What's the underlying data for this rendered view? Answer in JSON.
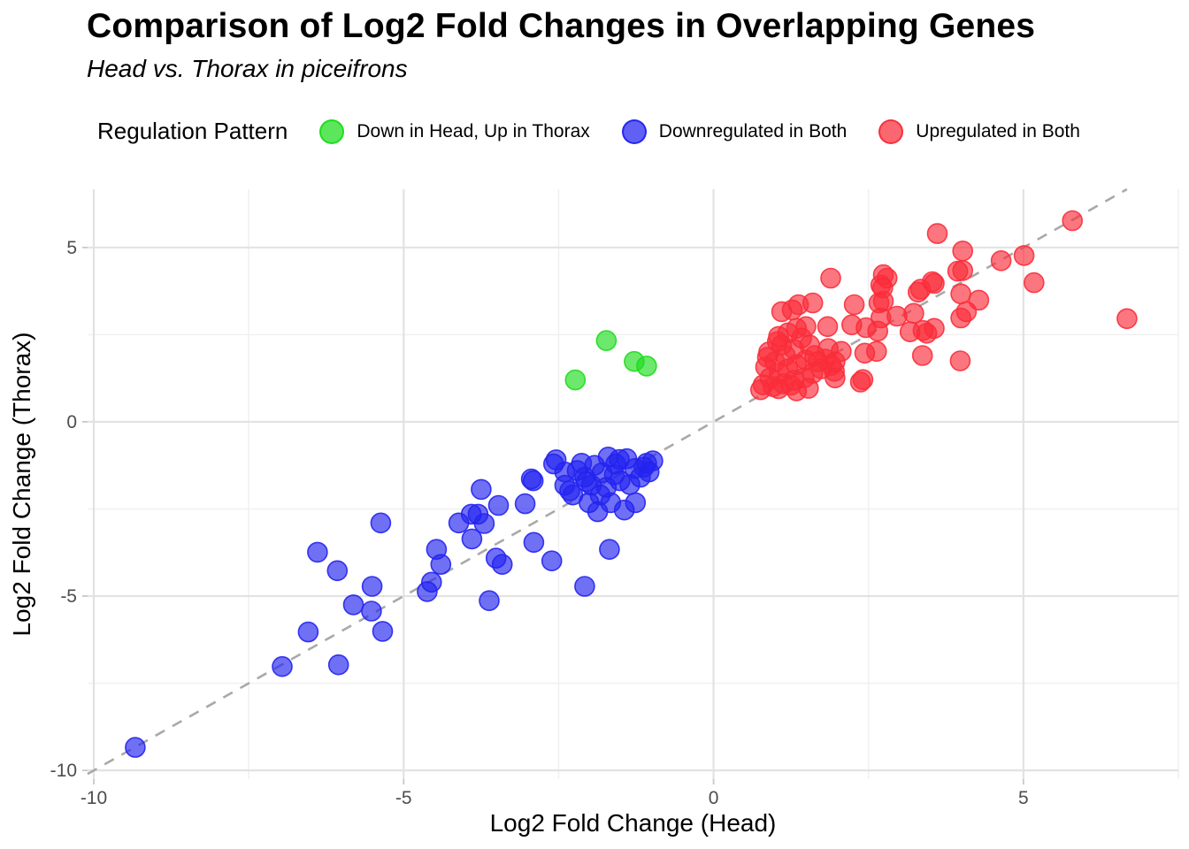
{
  "header": {
    "title": "Comparison of Log2 Fold Changes in Overlapping Genes",
    "subtitle": "Head vs. Thorax in piceifrons"
  },
  "legend": {
    "title": "Regulation Pattern",
    "entries": [
      {
        "label": "Down in Head, Up in Thorax",
        "color": "#1ddc1d"
      },
      {
        "label": "Downregulated in Both",
        "color": "#2323f0"
      },
      {
        "label": "Upregulated in Both",
        "color": "#fa2d3a"
      }
    ]
  },
  "chart_data": {
    "type": "scatter",
    "title": "Comparison of Log2 Fold Changes in Overlapping Genes",
    "subtitle": "Head vs. Thorax in piceifrons",
    "xlabel": "Log2 Fold Change (Head)",
    "ylabel": "Log2 Fold Change (Thorax)",
    "xlim": [
      -10.1,
      7.5
    ],
    "ylim": [
      -10.25,
      6.67
    ],
    "grid": true,
    "legend_position": "top",
    "x_ticks": {
      "values": [
        -10,
        -5,
        0,
        5
      ],
      "labels": [
        "-10",
        "-5",
        "0",
        "5"
      ]
    },
    "y_ticks": {
      "values": [
        5,
        0,
        -5,
        -10
      ],
      "labels": [
        "5",
        "0",
        "-5",
        "-10"
      ]
    },
    "x_minor_ticks": [
      -7.5,
      -2.5,
      2.5,
      7.5
    ],
    "y_minor_ticks": [
      2.5,
      -2.5,
      -7.5
    ],
    "identity_line": {
      "type": "dashed",
      "slope": 1,
      "intercept": 0,
      "color": "#a9a9a9"
    },
    "point_style": {
      "radius": 11,
      "fill_opacity": 0.65,
      "stroke_opacity": 0.9
    },
    "series": [
      {
        "name": "Down in Head, Up in Thorax",
        "color": "#1ddc1d",
        "points": [
          [
            -1.73,
            2.33
          ],
          [
            -2.23,
            1.2
          ],
          [
            -1.28,
            1.73
          ],
          [
            -1.08,
            1.6
          ]
        ]
      },
      {
        "name": "Downregulated in Both",
        "color": "#2323f0",
        "points": [
          [
            -9.33,
            -9.34
          ],
          [
            -6.96,
            -7.02
          ],
          [
            -6.05,
            -6.97
          ],
          [
            -6.54,
            -6.03
          ],
          [
            -5.81,
            -5.25
          ],
          [
            -5.52,
            -5.43
          ],
          [
            -5.34,
            -6.01
          ],
          [
            -6.39,
            -3.74
          ],
          [
            -6.07,
            -4.27
          ],
          [
            -5.51,
            -4.72
          ],
          [
            -5.37,
            -2.9
          ],
          [
            -4.47,
            -3.66
          ],
          [
            -4.4,
            -4.09
          ],
          [
            -4.55,
            -4.6
          ],
          [
            -4.62,
            -4.87
          ],
          [
            -4.11,
            -2.9
          ],
          [
            -3.91,
            -2.65
          ],
          [
            -3.8,
            -2.65
          ],
          [
            -3.7,
            -2.92
          ],
          [
            -3.9,
            -3.36
          ],
          [
            -3.75,
            -1.94
          ],
          [
            -3.47,
            -2.4
          ],
          [
            -3.04,
            -2.35
          ],
          [
            -2.94,
            -1.64
          ],
          [
            -2.9,
            -3.46
          ],
          [
            -2.61,
            -3.99
          ],
          [
            -3.51,
            -3.91
          ],
          [
            -3.41,
            -4.09
          ],
          [
            -3.62,
            -5.13
          ],
          [
            -2.08,
            -4.72
          ],
          [
            -1.68,
            -3.66
          ],
          [
            -2.4,
            -1.44
          ],
          [
            -2.91,
            -1.69
          ],
          [
            -2.54,
            -1.09
          ],
          [
            -2.58,
            -1.21
          ],
          [
            -2.4,
            -1.82
          ],
          [
            -2.27,
            -2.1
          ],
          [
            -2.13,
            -1.19
          ],
          [
            -2.08,
            -1.59
          ],
          [
            -1.97,
            -1.82
          ],
          [
            -2.01,
            -2.32
          ],
          [
            -1.83,
            -2.1
          ],
          [
            -1.87,
            -2.58
          ],
          [
            -1.8,
            -1.46
          ],
          [
            -1.7,
            -1.01
          ],
          [
            -1.66,
            -2.32
          ],
          [
            -1.58,
            -1.21
          ],
          [
            -1.51,
            -1.69
          ],
          [
            -1.44,
            -2.53
          ],
          [
            -1.4,
            -1.06
          ],
          [
            -1.27,
            -1.34
          ],
          [
            -1.18,
            -1.59
          ],
          [
            -1.08,
            -1.19
          ],
          [
            -1.04,
            -1.44
          ],
          [
            -1.26,
            -2.32
          ],
          [
            -2.2,
            -1.4
          ],
          [
            -1.92,
            -1.25
          ],
          [
            -1.6,
            -1.52
          ],
          [
            -2.05,
            -1.72
          ],
          [
            -1.35,
            -1.8
          ],
          [
            -1.12,
            -1.3
          ],
          [
            -1.52,
            -1.08
          ],
          [
            -2.32,
            -1.98
          ],
          [
            -1.73,
            -1.88
          ],
          [
            -0.98,
            -1.12
          ]
        ]
      },
      {
        "name": "Upregulated in Both",
        "color": "#fa2d3a",
        "points": [
          [
            0.76,
            0.92
          ],
          [
            0.8,
            1.06
          ],
          [
            0.84,
            1.57
          ],
          [
            0.87,
            1.85
          ],
          [
            0.89,
            2.0
          ],
          [
            0.91,
            1.26
          ],
          [
            0.96,
            1.01
          ],
          [
            0.99,
            1.72
          ],
          [
            1.03,
            2.3
          ],
          [
            1.05,
            0.95
          ],
          [
            1.05,
            2.45
          ],
          [
            1.06,
            1.39
          ],
          [
            1.1,
            2.2
          ],
          [
            1.13,
            1.09
          ],
          [
            1.16,
            1.9
          ],
          [
            1.2,
            1.52
          ],
          [
            1.2,
            2.55
          ],
          [
            1.25,
            1.05
          ],
          [
            1.3,
            1.19
          ],
          [
            1.3,
            2.08
          ],
          [
            1.34,
            0.89
          ],
          [
            1.34,
            1.64
          ],
          [
            1.34,
            2.68
          ],
          [
            1.42,
            2.4
          ],
          [
            1.46,
            1.26
          ],
          [
            1.49,
            1.77
          ],
          [
            1.49,
            2.73
          ],
          [
            1.53,
            0.96
          ],
          [
            1.55,
            2.2
          ],
          [
            1.6,
            1.39
          ],
          [
            1.63,
            1.9
          ],
          [
            1.68,
            1.72
          ],
          [
            1.74,
            1.52
          ],
          [
            1.8,
            1.8
          ],
          [
            1.85,
            2.1
          ],
          [
            1.9,
            1.62
          ],
          [
            1.95,
            1.45
          ],
          [
            1.96,
            1.26
          ],
          [
            1.96,
            1.72
          ],
          [
            2.06,
            2.02
          ],
          [
            2.37,
            1.14
          ],
          [
            2.41,
            1.21
          ],
          [
            2.44,
            1.97
          ],
          [
            2.63,
            2.02
          ],
          [
            3.37,
            1.9
          ],
          [
            3.98,
            1.75
          ],
          [
            1.84,
            2.73
          ],
          [
            2.23,
            2.78
          ],
          [
            2.46,
            2.7
          ],
          [
            2.65,
            2.6
          ],
          [
            3.17,
            2.58
          ],
          [
            3.38,
            2.62
          ],
          [
            3.44,
            2.54
          ],
          [
            3.56,
            2.68
          ],
          [
            2.7,
            2.98
          ],
          [
            2.96,
            3.03
          ],
          [
            3.23,
            3.11
          ],
          [
            4.08,
            3.16
          ],
          [
            3.99,
            2.98
          ],
          [
            6.67,
            2.96
          ],
          [
            1.1,
            3.16
          ],
          [
            1.27,
            3.21
          ],
          [
            1.37,
            3.36
          ],
          [
            1.6,
            3.41
          ],
          [
            2.27,
            3.36
          ],
          [
            2.67,
            3.41
          ],
          [
            2.74,
            3.46
          ],
          [
            3.3,
            3.72
          ],
          [
            3.34,
            3.8
          ],
          [
            3.99,
            3.67
          ],
          [
            4.28,
            3.49
          ],
          [
            2.73,
            3.84
          ],
          [
            1.89,
            4.12
          ],
          [
            2.8,
            4.12
          ],
          [
            2.74,
            4.22
          ],
          [
            2.7,
            3.92
          ],
          [
            3.53,
            4.02
          ],
          [
            3.56,
            3.97
          ],
          [
            3.94,
            4.32
          ],
          [
            5.17,
            3.99
          ],
          [
            4.02,
            4.34
          ],
          [
            4.02,
            4.9
          ],
          [
            4.64,
            4.62
          ],
          [
            5.01,
            4.77
          ],
          [
            3.61,
            5.4
          ],
          [
            5.79,
            5.77
          ]
        ]
      }
    ]
  }
}
